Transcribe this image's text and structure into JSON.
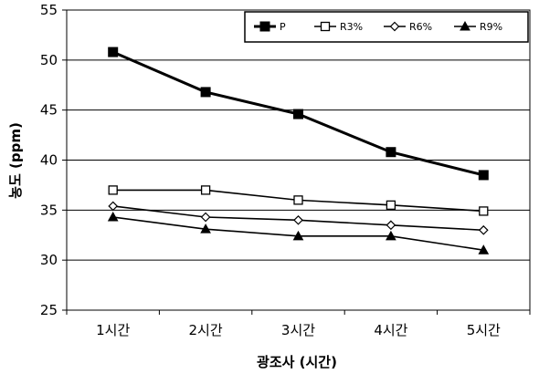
{
  "chart_data": {
    "type": "line",
    "title": "",
    "xlabel": "광조사 (시간)",
    "ylabel": "농도 (ppm)",
    "categories": [
      "1시간",
      "2시간",
      "3시간",
      "4시간",
      "5시간"
    ],
    "ylim": [
      25,
      55
    ],
    "yticks": [
      25,
      30,
      35,
      40,
      45,
      50,
      55
    ],
    "grid": "horizontal",
    "legend_position": "top-right",
    "series": [
      {
        "name": "P",
        "marker": "filled-square",
        "color": "#000000",
        "values": [
          50.8,
          46.8,
          44.6,
          40.8,
          38.5
        ]
      },
      {
        "name": "R3%",
        "marker": "open-square",
        "color": "#000000",
        "values": [
          37.0,
          37.0,
          36.0,
          35.5,
          34.9
        ]
      },
      {
        "name": "R6%",
        "marker": "open-diamond",
        "color": "#000000",
        "values": [
          35.4,
          34.3,
          34.0,
          33.5,
          33.0
        ]
      },
      {
        "name": "R9%",
        "marker": "filled-triangle",
        "color": "#000000",
        "values": [
          34.3,
          33.1,
          32.4,
          32.4,
          31.0
        ]
      }
    ]
  }
}
